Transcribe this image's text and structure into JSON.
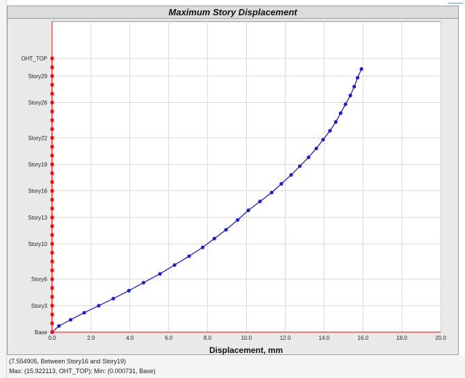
{
  "window": {
    "title": "Maximum Story Displacement"
  },
  "status": {
    "line1": "(7.554905, Between Story16 and Story19)",
    "line2": "Max: (15.922113, OHT_TOP);   Min: (0.000731, Base)"
  },
  "colors": {
    "series": "#1a1ae6",
    "reference": "#ff0000",
    "plot_bg": "#ffffff",
    "panel_bg": "#e9e9e9"
  },
  "chart_data": {
    "type": "line",
    "title": "Maximum Story Displacement",
    "xlabel": "Displacement, mm",
    "ylabel": "",
    "xlim": [
      0,
      20
    ],
    "xticks": [
      "0.0",
      "2.0",
      "4.0",
      "6.0",
      "8.0",
      "10.0",
      "12.0",
      "14.0",
      "16.0",
      "18.0",
      "20.0"
    ],
    "ylim": [
      0,
      31
    ],
    "yticks": [
      {
        "label": "Base",
        "story": 0
      },
      {
        "label": "Story3",
        "story": 3
      },
      {
        "label": "Story6",
        "story": 6
      },
      {
        "label": "Story10",
        "story": 10
      },
      {
        "label": "Story13",
        "story": 13
      },
      {
        "label": "Story16",
        "story": 16
      },
      {
        "label": "Story19",
        "story": 19
      },
      {
        "label": "Story22",
        "story": 22
      },
      {
        "label": "Story26",
        "story": 26
      },
      {
        "label": "Story29",
        "story": 29
      },
      {
        "label": "OHT_TOP",
        "story": 31
      }
    ],
    "grid": true,
    "legend": "none",
    "series": [
      {
        "x": [
          0.0,
          0.35,
          0.95,
          1.65,
          2.4,
          3.15,
          3.95,
          4.7,
          5.55,
          6.3,
          7.05,
          7.75,
          8.35,
          8.95,
          9.55,
          10.1,
          10.7,
          11.3,
          11.8,
          12.3,
          12.75,
          13.2,
          13.6,
          13.95,
          14.3,
          14.6,
          14.85,
          15.1,
          15.35,
          15.55,
          15.72,
          15.922
        ],
        "y": [
          0,
          0.7,
          1.4,
          2.2,
          3.0,
          3.8,
          4.7,
          5.6,
          6.6,
          7.6,
          8.6,
          9.6,
          10.6,
          11.6,
          12.7,
          13.8,
          14.8,
          15.8,
          16.8,
          17.8,
          18.8,
          19.8,
          20.8,
          21.8,
          22.8,
          23.8,
          24.8,
          25.8,
          26.8,
          27.8,
          28.8,
          29.8
        ]
      },
      {
        "reference": true,
        "x": [
          0,
          0,
          0,
          0,
          0,
          0,
          0,
          0,
          0,
          0,
          0,
          0,
          0,
          0,
          0,
          0,
          0,
          0,
          0,
          0,
          0,
          0,
          0,
          0,
          0,
          0,
          0,
          0,
          0,
          0,
          0,
          0
        ],
        "y": [
          0,
          1,
          2,
          3,
          4,
          5,
          6,
          7,
          8,
          9,
          10,
          11,
          12,
          13,
          14,
          15,
          16,
          17,
          18,
          19,
          20,
          21,
          22,
          23,
          24,
          25,
          26,
          27,
          28,
          29,
          30,
          31
        ]
      }
    ]
  }
}
